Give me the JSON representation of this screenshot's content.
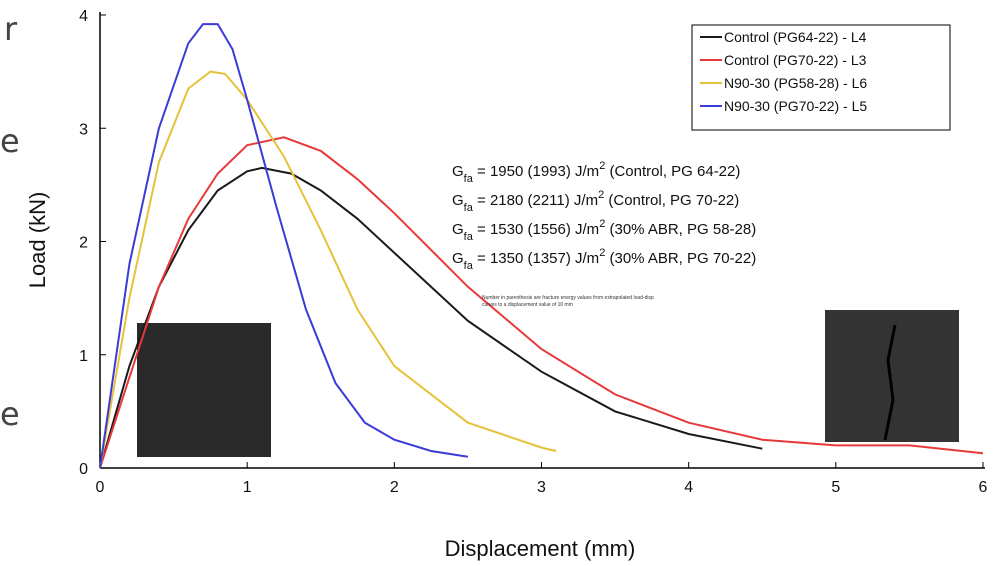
{
  "slide_text": [
    "r",
    "e",
    "e"
  ],
  "chart_data": {
    "type": "line",
    "xlabel": "Displacement (mm)",
    "ylabel": "Load (kN)",
    "xlim": [
      0,
      6
    ],
    "ylim": [
      0,
      4
    ],
    "xticks": [
      0,
      1,
      2,
      3,
      4,
      5,
      6
    ],
    "yticks": [
      0,
      1,
      2,
      3,
      4
    ],
    "legend": "upper right",
    "series": [
      {
        "name": "Control (PG64-22) - L4",
        "color": "#1a1a1a",
        "x": [
          0,
          0.2,
          0.4,
          0.6,
          0.8,
          1.0,
          1.1,
          1.3,
          1.5,
          1.75,
          2.0,
          2.5,
          3.0,
          3.5,
          4.0,
          4.5
        ],
        "values": [
          0,
          0.9,
          1.6,
          2.1,
          2.45,
          2.62,
          2.65,
          2.6,
          2.45,
          2.2,
          1.9,
          1.3,
          0.85,
          0.5,
          0.3,
          0.17
        ]
      },
      {
        "name": "Control (PG70-22) - L3",
        "color": "#e8393a",
        "x": [
          0,
          0.2,
          0.4,
          0.6,
          0.8,
          1.0,
          1.25,
          1.5,
          1.75,
          2.0,
          2.5,
          3.0,
          3.5,
          4.0,
          4.5,
          5.0,
          5.5,
          6.0
        ],
        "values": [
          0,
          0.8,
          1.6,
          2.2,
          2.6,
          2.85,
          2.92,
          2.8,
          2.55,
          2.25,
          1.6,
          1.05,
          0.65,
          0.4,
          0.25,
          0.2,
          0.2,
          0.13
        ]
      },
      {
        "name": "N90-30 (PG58-28) - L6",
        "color": "#e6c23a",
        "x": [
          0,
          0.2,
          0.4,
          0.6,
          0.75,
          0.85,
          1.0,
          1.25,
          1.5,
          1.75,
          2.0,
          2.5,
          3.0,
          3.1
        ],
        "values": [
          0,
          1.5,
          2.7,
          3.35,
          3.5,
          3.48,
          3.25,
          2.75,
          2.1,
          1.4,
          0.9,
          0.4,
          0.18,
          0.15
        ]
      },
      {
        "name": "N90-30 (PG70-22) - L5",
        "color": "#3b3bd6",
        "x": [
          0,
          0.2,
          0.4,
          0.6,
          0.7,
          0.8,
          0.9,
          1.0,
          1.2,
          1.4,
          1.6,
          1.8,
          2.0,
          2.25,
          2.5
        ],
        "values": [
          0,
          1.8,
          3.0,
          3.75,
          3.92,
          3.92,
          3.7,
          3.25,
          2.3,
          1.4,
          0.75,
          0.4,
          0.25,
          0.15,
          0.1
        ]
      }
    ],
    "annotations": [
      {
        "symbol": "G",
        "sub": "fa",
        "text": " = 1950 (1993) J/m",
        "sup": "2",
        "note": " (Control, PG 64-22)"
      },
      {
        "symbol": "G",
        "sub": "fa",
        "text": " = 2180 (2211) J/m",
        "sup": "2",
        "note": " (Control, PG 70-22)"
      },
      {
        "symbol": "G",
        "sub": "fa",
        "text": " = 1530 (1556) J/m",
        "sup": "2",
        "note": " (30% ABR, PG 58-28)"
      },
      {
        "symbol": "G",
        "sub": "fa",
        "text": " = 1350 (1357) J/m",
        "sup": "2",
        "note": " (30% ABR, PG 70-22)"
      }
    ],
    "footnote": [
      "Number in parenthesis are fracture energy values from extrapolated load-disp",
      "curves to a displacement value of 10 mm"
    ]
  }
}
